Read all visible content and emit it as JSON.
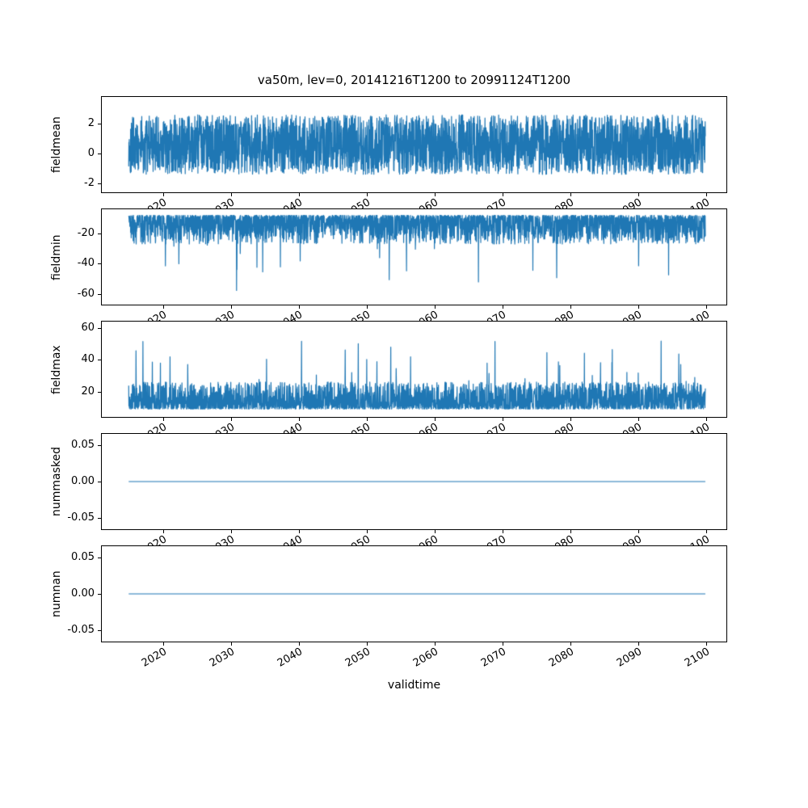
{
  "title": "va50m, lev=0, 20141216T1200 to 20991124T1200",
  "xlabel": "validtime",
  "line_color": "#1f77b4",
  "background_color": "#ffffff",
  "x_axis": {
    "xlim": [
      2011,
      2103
    ],
    "xticks": [
      2020,
      2030,
      2040,
      2050,
      2060,
      2070,
      2080,
      2090,
      2100
    ],
    "xtick_labels": [
      "2020",
      "2030",
      "2040",
      "2050",
      "2060",
      "2070",
      "2080",
      "2090",
      "2100"
    ],
    "tick_rotation_deg": 30,
    "data_start": 2014.96,
    "data_end": 2099.9
  },
  "chart_data": [
    {
      "type": "line",
      "ylabel": "fieldmean",
      "ylim": [
        -2.6,
        3.8
      ],
      "yticks": [
        -2,
        0,
        2
      ],
      "ytick_labels": [
        "-2",
        "0",
        "2"
      ],
      "grid": false,
      "legend": false,
      "series": {
        "name": "fieldmean",
        "summary": "dense high-frequency noisy series oscillating roughly between -1.5 and 2.7, rare extremes near -2.2 and 3.4",
        "gen": {
          "mode": "sym",
          "seed": 101,
          "n": 3000,
          "base": 0.6,
          "amp": 2.0,
          "spike_prob": 0.004,
          "spike_lo": 0.2,
          "spike_hi": 0.9
        }
      }
    },
    {
      "type": "line",
      "ylabel": "fieldmin",
      "ylim": [
        -67,
        -4
      ],
      "yticks": [
        -60,
        -40,
        -20
      ],
      "ytick_labels": [
        "-60",
        "-40",
        "-20"
      ],
      "grid": false,
      "legend": false,
      "series": {
        "name": "fieldmin",
        "summary": "dense noisy series mostly between -30 and -8 with frequent downward spikes reaching about -63",
        "gen": {
          "mode": "neg",
          "seed": 202,
          "n": 3000,
          "base": -8,
          "amp": 19,
          "pow": 2,
          "spike_prob": 0.012,
          "spike_lo": 10,
          "spike_hi": 36
        }
      }
    },
    {
      "type": "line",
      "ylabel": "fieldmax",
      "ylim": [
        4,
        64
      ],
      "yticks": [
        20,
        40,
        60
      ],
      "ytick_labels": [
        "20",
        "40",
        "60"
      ],
      "grid": false,
      "legend": false,
      "series": {
        "name": "fieldmax",
        "summary": "dense noisy series mostly between 8 and 28 with frequent upward spikes reaching about 62",
        "gen": {
          "mode": "pos",
          "seed": 303,
          "n": 3000,
          "base": 9,
          "amp": 17,
          "pow": 2,
          "spike_prob": 0.012,
          "spike_lo": 10,
          "spike_hi": 37
        }
      }
    },
    {
      "type": "line",
      "ylabel": "nummasked",
      "ylim": [
        -0.065,
        0.065
      ],
      "yticks": [
        -0.05,
        0,
        0.05
      ],
      "ytick_labels": [
        "-0.05",
        "0.00",
        "0.05"
      ],
      "grid": false,
      "legend": false,
      "series": {
        "name": "nummasked",
        "summary": "constant value 0 for the whole period",
        "gen": {
          "mode": "const",
          "value": 0,
          "n": 2
        }
      }
    },
    {
      "type": "line",
      "ylabel": "numnan",
      "ylim": [
        -0.065,
        0.065
      ],
      "yticks": [
        -0.05,
        0,
        0.05
      ],
      "ytick_labels": [
        "-0.05",
        "0.00",
        "0.05"
      ],
      "grid": false,
      "legend": false,
      "series": {
        "name": "numnan",
        "summary": "constant value 0 for the whole period",
        "gen": {
          "mode": "const",
          "value": 0,
          "n": 2
        }
      }
    }
  ]
}
